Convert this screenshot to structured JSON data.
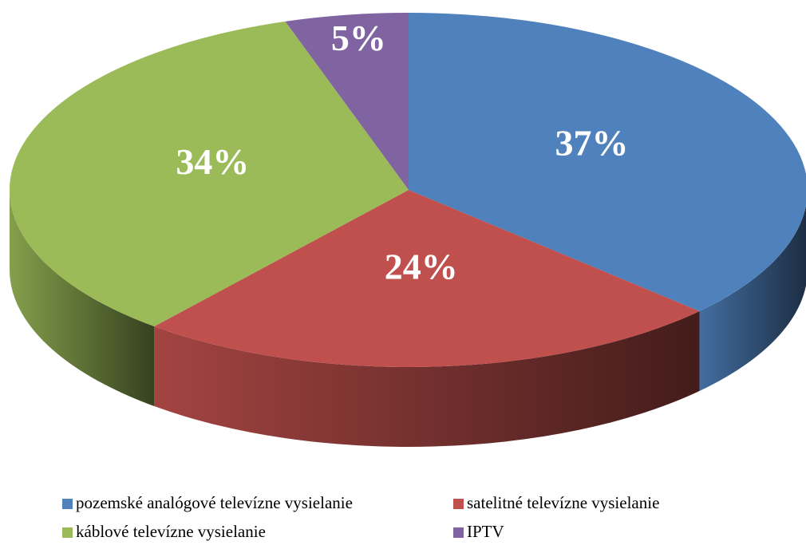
{
  "chart_data": {
    "type": "pie",
    "categories": [
      "pozemské analógové televízne vysielanie",
      "satelitné televízne vysielanie",
      "káblové televízne vysielanie",
      "IPTV"
    ],
    "values": [
      37,
      24,
      34,
      5
    ],
    "value_labels": [
      "37%",
      "24%",
      "34%",
      "5%"
    ],
    "colors": [
      "#4f81bd",
      "#c0504d",
      "#9bbb59",
      "#8064a2"
    ],
    "legend": "bottom"
  }
}
